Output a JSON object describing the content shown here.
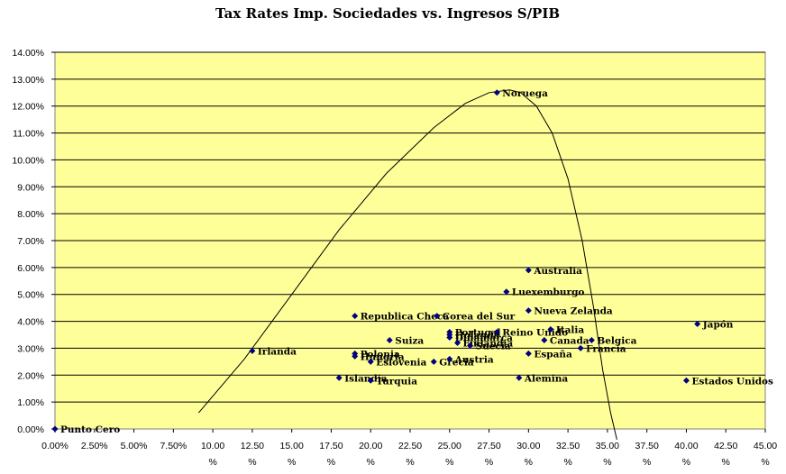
{
  "chart_data": {
    "type": "scatter",
    "title": "Tax Rates Imp. Sociedades  vs. Ingresos S/PIB",
    "xlabel": "",
    "ylabel": "",
    "xlim": [
      0,
      45
    ],
    "ylim": [
      0,
      14
    ],
    "x_ticks": [
      "0.00%",
      "2.50%",
      "5.00%",
      "7.50%",
      "10.00\n%",
      "12.50\n%",
      "15.00\n%",
      "17.50\n%",
      "20.00\n%",
      "22.50\n%",
      "25.00\n%",
      "27.50\n%",
      "30.00\n%",
      "32.50\n%",
      "35.00\n%",
      "37.50\n%",
      "40.00\n%",
      "42.50\n%",
      "45.00\n%"
    ],
    "y_ticks": [
      "0.00%",
      "1.00%",
      "2.00%",
      "3.00%",
      "4.00%",
      "5.00%",
      "6.00%",
      "7.00%",
      "8.00%",
      "9.00%",
      "10.00%",
      "11.00%",
      "12.00%",
      "13.00%",
      "14.00%"
    ],
    "grid": "horizontal",
    "background": "#FFFF99",
    "marker_color": "#000080",
    "points": [
      {
        "label": "Punto Cero",
        "x": 0.0,
        "y": 0.0
      },
      {
        "label": "Irlanda",
        "x": 12.5,
        "y": 2.9
      },
      {
        "label": "Islandia",
        "x": 18.0,
        "y": 1.9
      },
      {
        "label": "Polonia",
        "x": 19.0,
        "y": 2.8
      },
      {
        "label": "Hungria",
        "x": 19.0,
        "y": 2.7
      },
      {
        "label": "Turquia",
        "x": 20.0,
        "y": 1.8
      },
      {
        "label": "Eslovenia",
        "x": 20.0,
        "y": 2.5
      },
      {
        "label": "Suiza",
        "x": 21.2,
        "y": 3.3
      },
      {
        "label": "Republica Checa",
        "x": 19.0,
        "y": 4.2
      },
      {
        "label": "Corea del Sur",
        "x": 24.2,
        "y": 4.2
      },
      {
        "label": "Grecia",
        "x": 24.0,
        "y": 2.5
      },
      {
        "label": "Austria",
        "x": 25.0,
        "y": 2.6
      },
      {
        "label": "Portugal",
        "x": 25.0,
        "y": 3.6
      },
      {
        "label": "Holanda",
        "x": 25.0,
        "y": 3.5
      },
      {
        "label": "Dinamarca",
        "x": 25.0,
        "y": 3.4
      },
      {
        "label": "Finlandia",
        "x": 25.5,
        "y": 3.2
      },
      {
        "label": "Suecia",
        "x": 26.3,
        "y": 3.1
      },
      {
        "label": "Reino Unido",
        "x": 28.0,
        "y": 3.6
      },
      {
        "label": "Noruega",
        "x": 28.0,
        "y": 12.5
      },
      {
        "label": "Luexemburgo",
        "x": 28.6,
        "y": 5.1
      },
      {
        "label": "Australia",
        "x": 30.0,
        "y": 5.9
      },
      {
        "label": "Nueva Zelanda",
        "x": 30.0,
        "y": 4.4
      },
      {
        "label": "España",
        "x": 30.0,
        "y": 2.8
      },
      {
        "label": "Alemina",
        "x": 29.4,
        "y": 1.9
      },
      {
        "label": "Italia",
        "x": 31.4,
        "y": 3.7
      },
      {
        "label": "Canada",
        "x": 31.0,
        "y": 3.3
      },
      {
        "label": "Belgica",
        "x": 34.0,
        "y": 3.3
      },
      {
        "label": "Francia",
        "x": 33.3,
        "y": 3.0
      },
      {
        "label": "Japón",
        "x": 40.7,
        "y": 3.9
      },
      {
        "label": "Estados Unidos",
        "x": 40.0,
        "y": 1.8
      }
    ],
    "curve": [
      [
        9.1,
        0.6
      ],
      [
        12.0,
        2.6
      ],
      [
        15.0,
        5.0
      ],
      [
        18.0,
        7.4
      ],
      [
        21.0,
        9.5
      ],
      [
        24.0,
        11.2
      ],
      [
        26.0,
        12.1
      ],
      [
        27.5,
        12.5
      ],
      [
        28.8,
        12.6
      ],
      [
        29.5,
        12.5
      ],
      [
        30.5,
        12.0
      ],
      [
        31.5,
        11.0
      ],
      [
        32.5,
        9.3
      ],
      [
        33.4,
        7.0
      ],
      [
        34.1,
        4.6
      ],
      [
        34.7,
        2.2
      ],
      [
        35.2,
        0.6
      ],
      [
        35.6,
        -0.4
      ]
    ]
  }
}
